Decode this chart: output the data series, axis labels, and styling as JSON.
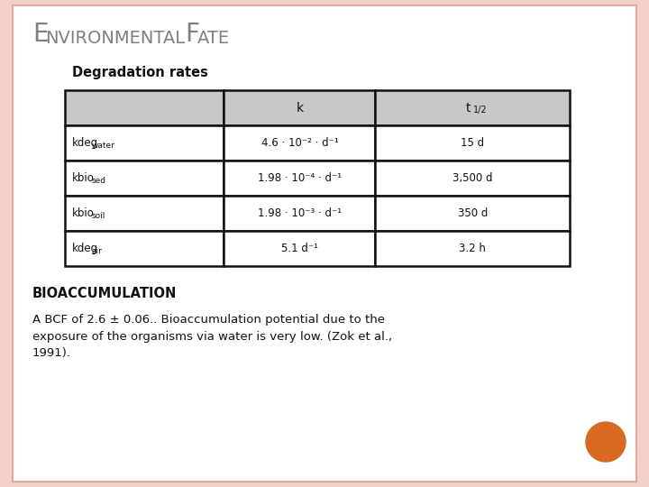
{
  "title_large1": "E",
  "title_small1": "NVIRONMENTAL",
  "title_large2": "F",
  "title_small2": "ATE",
  "subtitle": "Degradation rates",
  "bg_color": "#ffffff",
  "border_color": "#e8a898",
  "slide_bg": "#f0d0c8",
  "table_col1_labels": [
    [
      "kdeg",
      "water"
    ],
    [
      "kbio",
      "sed"
    ],
    [
      "kbio",
      "soil"
    ],
    [
      "kdeg",
      "air"
    ]
  ],
  "table_col2": [
    "4.6 · 10⁻² · d⁻¹",
    "1.98 · 10⁻⁴ · d⁻¹",
    "1.98 · 10⁻³ · d⁻¹",
    "5.1 d⁻¹"
  ],
  "table_col3": [
    "15 d",
    "3,500 d",
    "350 d",
    "3.2 h"
  ],
  "bioaccumulation_title": "BIOACCUMULATION",
  "bioaccumulation_text": "A BCF of 2.6 ± 0.06.. Bioaccumulation potential due to the\nexposure of the organisms via water is very low. (Zok et al.,\n1991).",
  "dot_color": "#d96820",
  "header_bg": "#c8c8c8",
  "table_border": "#111111",
  "title_color": "#808080",
  "text_color": "#111111",
  "white": "#ffffff"
}
